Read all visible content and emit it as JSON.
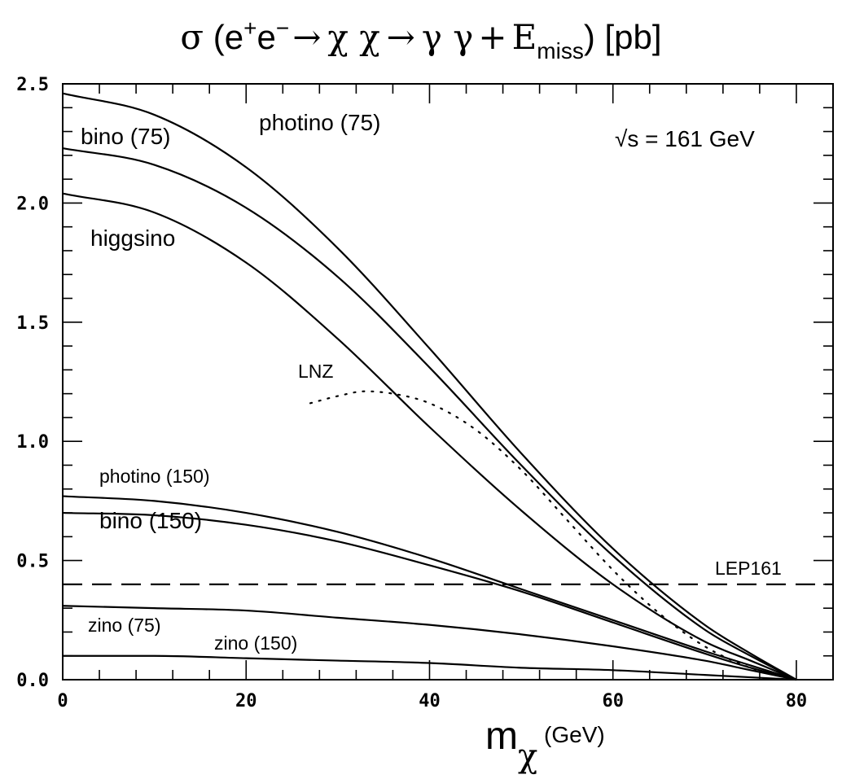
{
  "chart_data": {
    "type": "line",
    "title": "σ (e⁺e⁻ → χ χ → γ γ + E_miss) [pb]",
    "title_parts": {
      "sigma": "σ",
      "open": " (e",
      "plus": "+",
      "e2": "e",
      "minus": "−",
      "arrow1": "→",
      "chi_chi": "χ χ",
      "arrow2": "→",
      "gamma_gamma": "γ γ",
      "plus_sign": "+",
      "E": "E",
      "miss": "miss",
      "close": ") [pb]"
    },
    "xlabel": {
      "m": "m",
      "chi": "χ",
      "unit": " (GeV)"
    },
    "ylabel": "",
    "xlim": [
      0,
      84
    ],
    "ylim": [
      0,
      2.5
    ],
    "xticks": [
      "0",
      "20",
      "40",
      "60",
      "80"
    ],
    "yticks": [
      "0.0",
      "0.5",
      "1.0",
      "1.5",
      "2.0",
      "2.5"
    ],
    "annotation": "√s = 161 GeV",
    "series": [
      {
        "name": "photino (75)",
        "style": "solid",
        "x": [
          0,
          10,
          20,
          30,
          40,
          50,
          60,
          70,
          75,
          80
        ],
        "y": [
          2.46,
          2.37,
          2.15,
          1.81,
          1.39,
          0.95,
          0.55,
          0.23,
          0.11,
          0.0
        ]
      },
      {
        "name": "bino (75)",
        "style": "solid",
        "x": [
          0,
          10,
          20,
          30,
          40,
          50,
          60,
          70,
          75,
          80
        ],
        "y": [
          2.23,
          2.16,
          1.98,
          1.69,
          1.31,
          0.9,
          0.52,
          0.21,
          0.1,
          0.0
        ]
      },
      {
        "name": "higgsino",
        "style": "solid",
        "x": [
          0,
          10,
          20,
          30,
          40,
          50,
          60,
          70,
          75,
          80
        ],
        "y": [
          2.04,
          1.96,
          1.75,
          1.43,
          1.06,
          0.71,
          0.4,
          0.16,
          0.08,
          0.0
        ]
      },
      {
        "name": "LNZ",
        "style": "dotted",
        "x": [
          27,
          30,
          33,
          36,
          40,
          45,
          50,
          55,
          60,
          65,
          70,
          75,
          80
        ],
        "y": [
          1.16,
          1.19,
          1.21,
          1.2,
          1.16,
          1.05,
          0.88,
          0.67,
          0.46,
          0.28,
          0.14,
          0.05,
          0.0
        ]
      },
      {
        "name": "photino (150)",
        "style": "solid",
        "x": [
          0,
          10,
          20,
          30,
          40,
          50,
          60,
          70,
          75,
          80
        ],
        "y": [
          0.77,
          0.75,
          0.7,
          0.62,
          0.51,
          0.38,
          0.25,
          0.12,
          0.06,
          0.0
        ]
      },
      {
        "name": "bino (150)",
        "style": "solid",
        "x": [
          0,
          10,
          20,
          30,
          40,
          50,
          60,
          70,
          75,
          80
        ],
        "y": [
          0.7,
          0.69,
          0.65,
          0.58,
          0.48,
          0.37,
          0.24,
          0.11,
          0.05,
          0.0
        ]
      },
      {
        "name": "zino (75)",
        "style": "solid",
        "x": [
          0,
          10,
          20,
          30,
          40,
          50,
          60,
          70,
          75,
          80
        ],
        "y": [
          0.31,
          0.3,
          0.29,
          0.26,
          0.23,
          0.19,
          0.14,
          0.08,
          0.04,
          0.0
        ]
      },
      {
        "name": "zino (150)",
        "style": "solid",
        "x": [
          0,
          10,
          20,
          30,
          40,
          50,
          60,
          70,
          75,
          80
        ],
        "y": [
          0.1,
          0.1,
          0.09,
          0.08,
          0.07,
          0.05,
          0.04,
          0.02,
          0.01,
          0.0
        ]
      },
      {
        "name": "LEP161",
        "style": "dashed",
        "x": [
          0,
          84
        ],
        "y": [
          0.4,
          0.4
        ]
      }
    ],
    "curve_labels": {
      "photino75": "photino (75)",
      "bino75": "bino (75)",
      "higgsino": "higgsino",
      "lnz": "LNZ",
      "photino150": "photino (150)",
      "bino150": "bino (150)",
      "zino75": "zino (75)",
      "zino150": "zino (150)",
      "lep161": "LEP161"
    }
  }
}
